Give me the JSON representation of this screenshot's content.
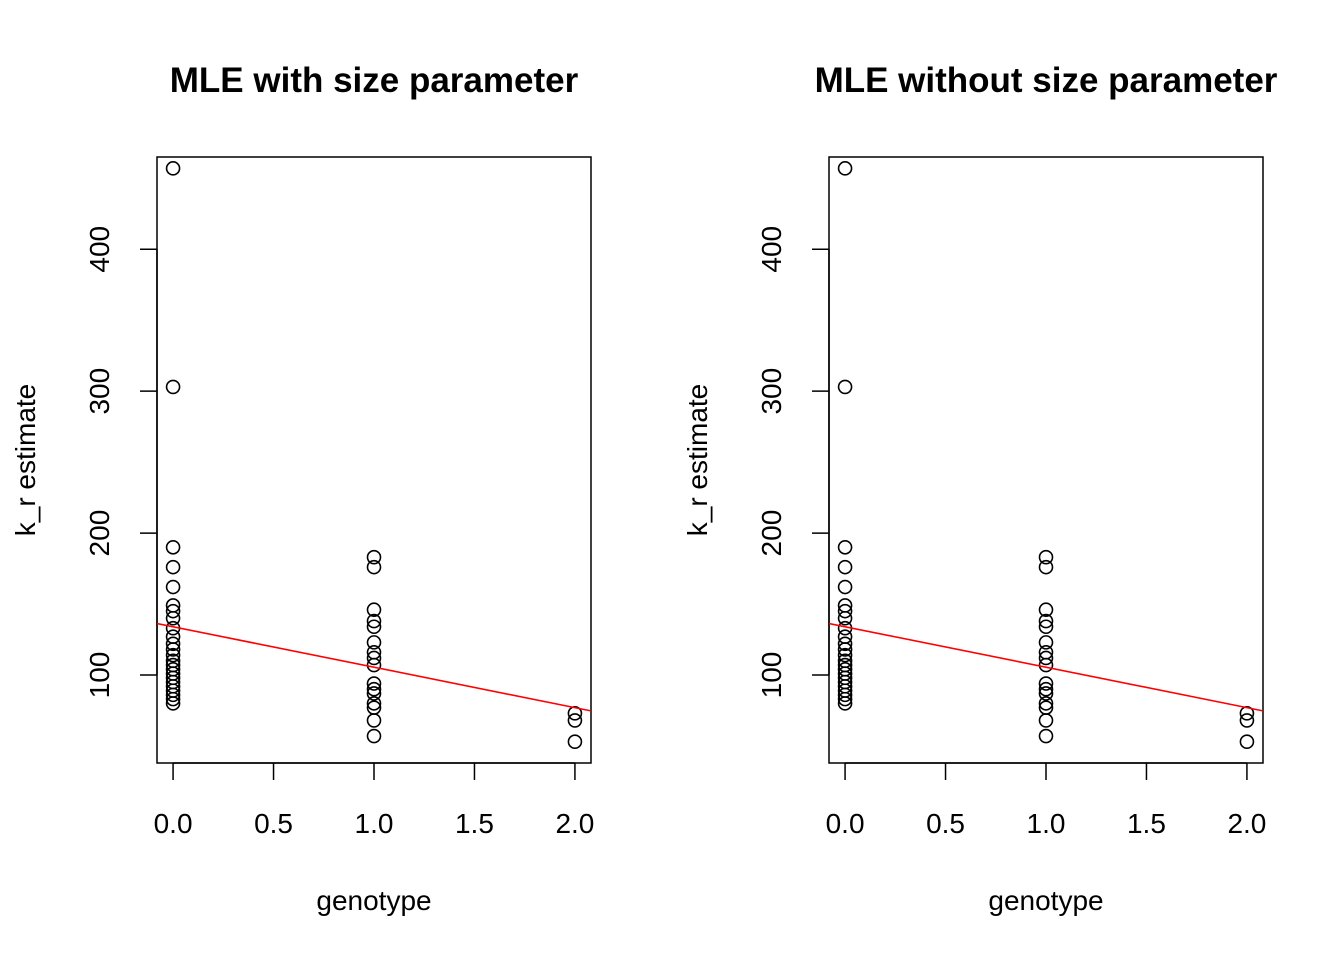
{
  "chart_data": [
    {
      "type": "scatter",
      "title": "MLE with size parameter",
      "xlabel": "genotype",
      "ylabel": "k_r estimate",
      "xlim": [
        -0.08,
        2.08
      ],
      "ylim": [
        38,
        465
      ],
      "xticks": [
        0.0,
        0.5,
        1.0,
        1.5,
        2.0
      ],
      "xtick_labels": [
        "0.0",
        "0.5",
        "1.0",
        "1.5",
        "2.0"
      ],
      "yticks": [
        100,
        200,
        300,
        400
      ],
      "ytick_labels": [
        "100",
        "200",
        "300",
        "400"
      ],
      "grid": false,
      "legend": "none",
      "point_color": "#000000",
      "line_color": "#ff0000",
      "fit_line": {
        "intercept": 134,
        "slope": -28.5
      },
      "points": [
        {
          "x": 0,
          "y": 457
        },
        {
          "x": 0,
          "y": 303
        },
        {
          "x": 0,
          "y": 190
        },
        {
          "x": 0,
          "y": 176
        },
        {
          "x": 0,
          "y": 162
        },
        {
          "x": 0,
          "y": 149
        },
        {
          "x": 0,
          "y": 145
        },
        {
          "x": 0,
          "y": 140
        },
        {
          "x": 0,
          "y": 133
        },
        {
          "x": 0,
          "y": 127
        },
        {
          "x": 0,
          "y": 122
        },
        {
          "x": 0,
          "y": 118
        },
        {
          "x": 0,
          "y": 114
        },
        {
          "x": 0,
          "y": 110
        },
        {
          "x": 0,
          "y": 107
        },
        {
          "x": 0,
          "y": 104
        },
        {
          "x": 0,
          "y": 101
        },
        {
          "x": 0,
          "y": 98
        },
        {
          "x": 0,
          "y": 95
        },
        {
          "x": 0,
          "y": 92
        },
        {
          "x": 0,
          "y": 89
        },
        {
          "x": 0,
          "y": 86
        },
        {
          "x": 0,
          "y": 83
        },
        {
          "x": 0,
          "y": 80
        },
        {
          "x": 1,
          "y": 183
        },
        {
          "x": 1,
          "y": 176
        },
        {
          "x": 1,
          "y": 146
        },
        {
          "x": 1,
          "y": 138
        },
        {
          "x": 1,
          "y": 134
        },
        {
          "x": 1,
          "y": 123
        },
        {
          "x": 1,
          "y": 116
        },
        {
          "x": 1,
          "y": 112
        },
        {
          "x": 1,
          "y": 107
        },
        {
          "x": 1,
          "y": 94
        },
        {
          "x": 1,
          "y": 90
        },
        {
          "x": 1,
          "y": 87
        },
        {
          "x": 1,
          "y": 80
        },
        {
          "x": 1,
          "y": 77
        },
        {
          "x": 1,
          "y": 68
        },
        {
          "x": 1,
          "y": 57
        },
        {
          "x": 2,
          "y": 73
        },
        {
          "x": 2,
          "y": 68
        },
        {
          "x": 2,
          "y": 53
        }
      ]
    },
    {
      "type": "scatter",
      "title": "MLE without size parameter",
      "xlabel": "genotype",
      "ylabel": "k_r estimate",
      "xlim": [
        -0.08,
        2.08
      ],
      "ylim": [
        38,
        465
      ],
      "xticks": [
        0.0,
        0.5,
        1.0,
        1.5,
        2.0
      ],
      "xtick_labels": [
        "0.0",
        "0.5",
        "1.0",
        "1.5",
        "2.0"
      ],
      "yticks": [
        100,
        200,
        300,
        400
      ],
      "ytick_labels": [
        "100",
        "200",
        "300",
        "400"
      ],
      "grid": false,
      "legend": "none",
      "point_color": "#000000",
      "line_color": "#ff0000",
      "fit_line": {
        "intercept": 134,
        "slope": -28.5
      },
      "points": [
        {
          "x": 0,
          "y": 457
        },
        {
          "x": 0,
          "y": 303
        },
        {
          "x": 0,
          "y": 190
        },
        {
          "x": 0,
          "y": 176
        },
        {
          "x": 0,
          "y": 162
        },
        {
          "x": 0,
          "y": 149
        },
        {
          "x": 0,
          "y": 145
        },
        {
          "x": 0,
          "y": 140
        },
        {
          "x": 0,
          "y": 133
        },
        {
          "x": 0,
          "y": 127
        },
        {
          "x": 0,
          "y": 122
        },
        {
          "x": 0,
          "y": 118
        },
        {
          "x": 0,
          "y": 114
        },
        {
          "x": 0,
          "y": 110
        },
        {
          "x": 0,
          "y": 107
        },
        {
          "x": 0,
          "y": 104
        },
        {
          "x": 0,
          "y": 101
        },
        {
          "x": 0,
          "y": 98
        },
        {
          "x": 0,
          "y": 95
        },
        {
          "x": 0,
          "y": 92
        },
        {
          "x": 0,
          "y": 89
        },
        {
          "x": 0,
          "y": 86
        },
        {
          "x": 0,
          "y": 83
        },
        {
          "x": 0,
          "y": 80
        },
        {
          "x": 1,
          "y": 183
        },
        {
          "x": 1,
          "y": 176
        },
        {
          "x": 1,
          "y": 146
        },
        {
          "x": 1,
          "y": 138
        },
        {
          "x": 1,
          "y": 134
        },
        {
          "x": 1,
          "y": 123
        },
        {
          "x": 1,
          "y": 116
        },
        {
          "x": 1,
          "y": 112
        },
        {
          "x": 1,
          "y": 107
        },
        {
          "x": 1,
          "y": 94
        },
        {
          "x": 1,
          "y": 90
        },
        {
          "x": 1,
          "y": 87
        },
        {
          "x": 1,
          "y": 80
        },
        {
          "x": 1,
          "y": 77
        },
        {
          "x": 1,
          "y": 68
        },
        {
          "x": 1,
          "y": 57
        },
        {
          "x": 2,
          "y": 73
        },
        {
          "x": 2,
          "y": 68
        },
        {
          "x": 2,
          "y": 53
        }
      ]
    }
  ]
}
